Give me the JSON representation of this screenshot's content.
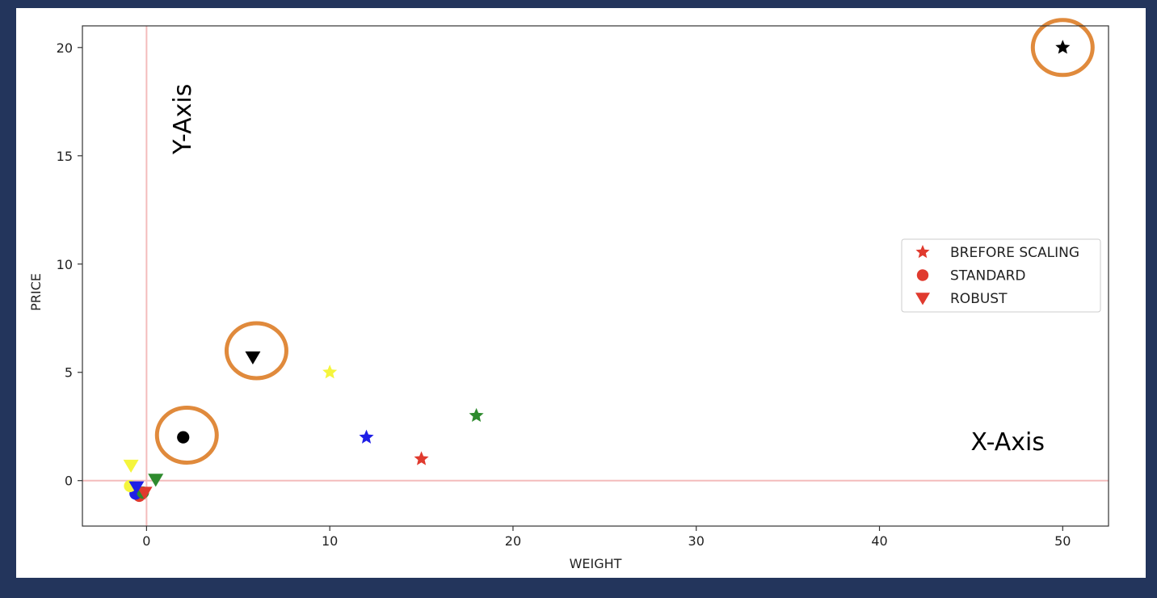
{
  "chart_data": {
    "type": "scatter",
    "xlabel": "WEIGHT",
    "ylabel": "PRICE",
    "xlim": [
      -3.5,
      52.5
    ],
    "ylim": [
      -2.1,
      21.0
    ],
    "xticks": [
      "0",
      "10",
      "20",
      "30",
      "40",
      "50"
    ],
    "yticks": [
      "0",
      "5",
      "10",
      "15",
      "20"
    ],
    "xtick_values": [
      0,
      10,
      20,
      30,
      40,
      50
    ],
    "ytick_values": [
      0,
      5,
      10,
      15,
      20
    ],
    "grid": false,
    "reference_lines": {
      "x": 0,
      "y": 0,
      "color": "#f4bcbc"
    },
    "legend": {
      "placement": "center-right",
      "entries": [
        {
          "label": "BREFORE SCALING",
          "marker": "star",
          "color": "#e03a2e"
        },
        {
          "label": "STANDARD",
          "marker": "circle",
          "color": "#e03a2e"
        },
        {
          "label": "ROBUST",
          "marker": "triangle-down",
          "color": "#e03a2e"
        }
      ]
    },
    "series": [
      {
        "marker": "star",
        "points": [
          {
            "x": 15,
            "y": 1,
            "color": "#e03a2e"
          },
          {
            "x": 12,
            "y": 2,
            "color": "#1f1fe6"
          },
          {
            "x": 18,
            "y": 3,
            "color": "#2e8b2e"
          },
          {
            "x": 10,
            "y": 5,
            "color": "#f5f53c"
          },
          {
            "x": 50,
            "y": 20,
            "color": "#000000"
          }
        ]
      },
      {
        "marker": "circle",
        "points": [
          {
            "x": -0.4,
            "y": -0.7,
            "color": "#e03a2e"
          },
          {
            "x": -0.6,
            "y": -0.6,
            "color": "#1f1fe6"
          },
          {
            "x": -0.9,
            "y": -0.25,
            "color": "#f5f53c"
          },
          {
            "x": -0.2,
            "y": -0.55,
            "color": "#2e8b2e"
          },
          {
            "x": 2,
            "y": 2,
            "color": "#000000"
          }
        ]
      },
      {
        "marker": "triangle-down",
        "points": [
          {
            "x": -0.1,
            "y": -0.55,
            "color": "#e03a2e"
          },
          {
            "x": -0.55,
            "y": -0.3,
            "color": "#1f1fe6"
          },
          {
            "x": 0.5,
            "y": 0.05,
            "color": "#2e8b2e"
          },
          {
            "x": -0.85,
            "y": 0.7,
            "color": "#f5f53c"
          },
          {
            "x": 5.8,
            "y": 5.7,
            "color": "#000000"
          }
        ]
      }
    ],
    "highlight_circles": [
      {
        "x": 50,
        "y": 20
      },
      {
        "x": 6,
        "y": 6
      },
      {
        "x": 2.2,
        "y": 2.1
      }
    ],
    "highlight_color": "#e08a3c",
    "annotations": [
      {
        "text": "Y-Axis",
        "x": 2.4,
        "y": 16.7,
        "rotate": -90
      },
      {
        "text": "X-Axis",
        "x": 47,
        "y": 1.4,
        "rotate": 0
      }
    ]
  }
}
